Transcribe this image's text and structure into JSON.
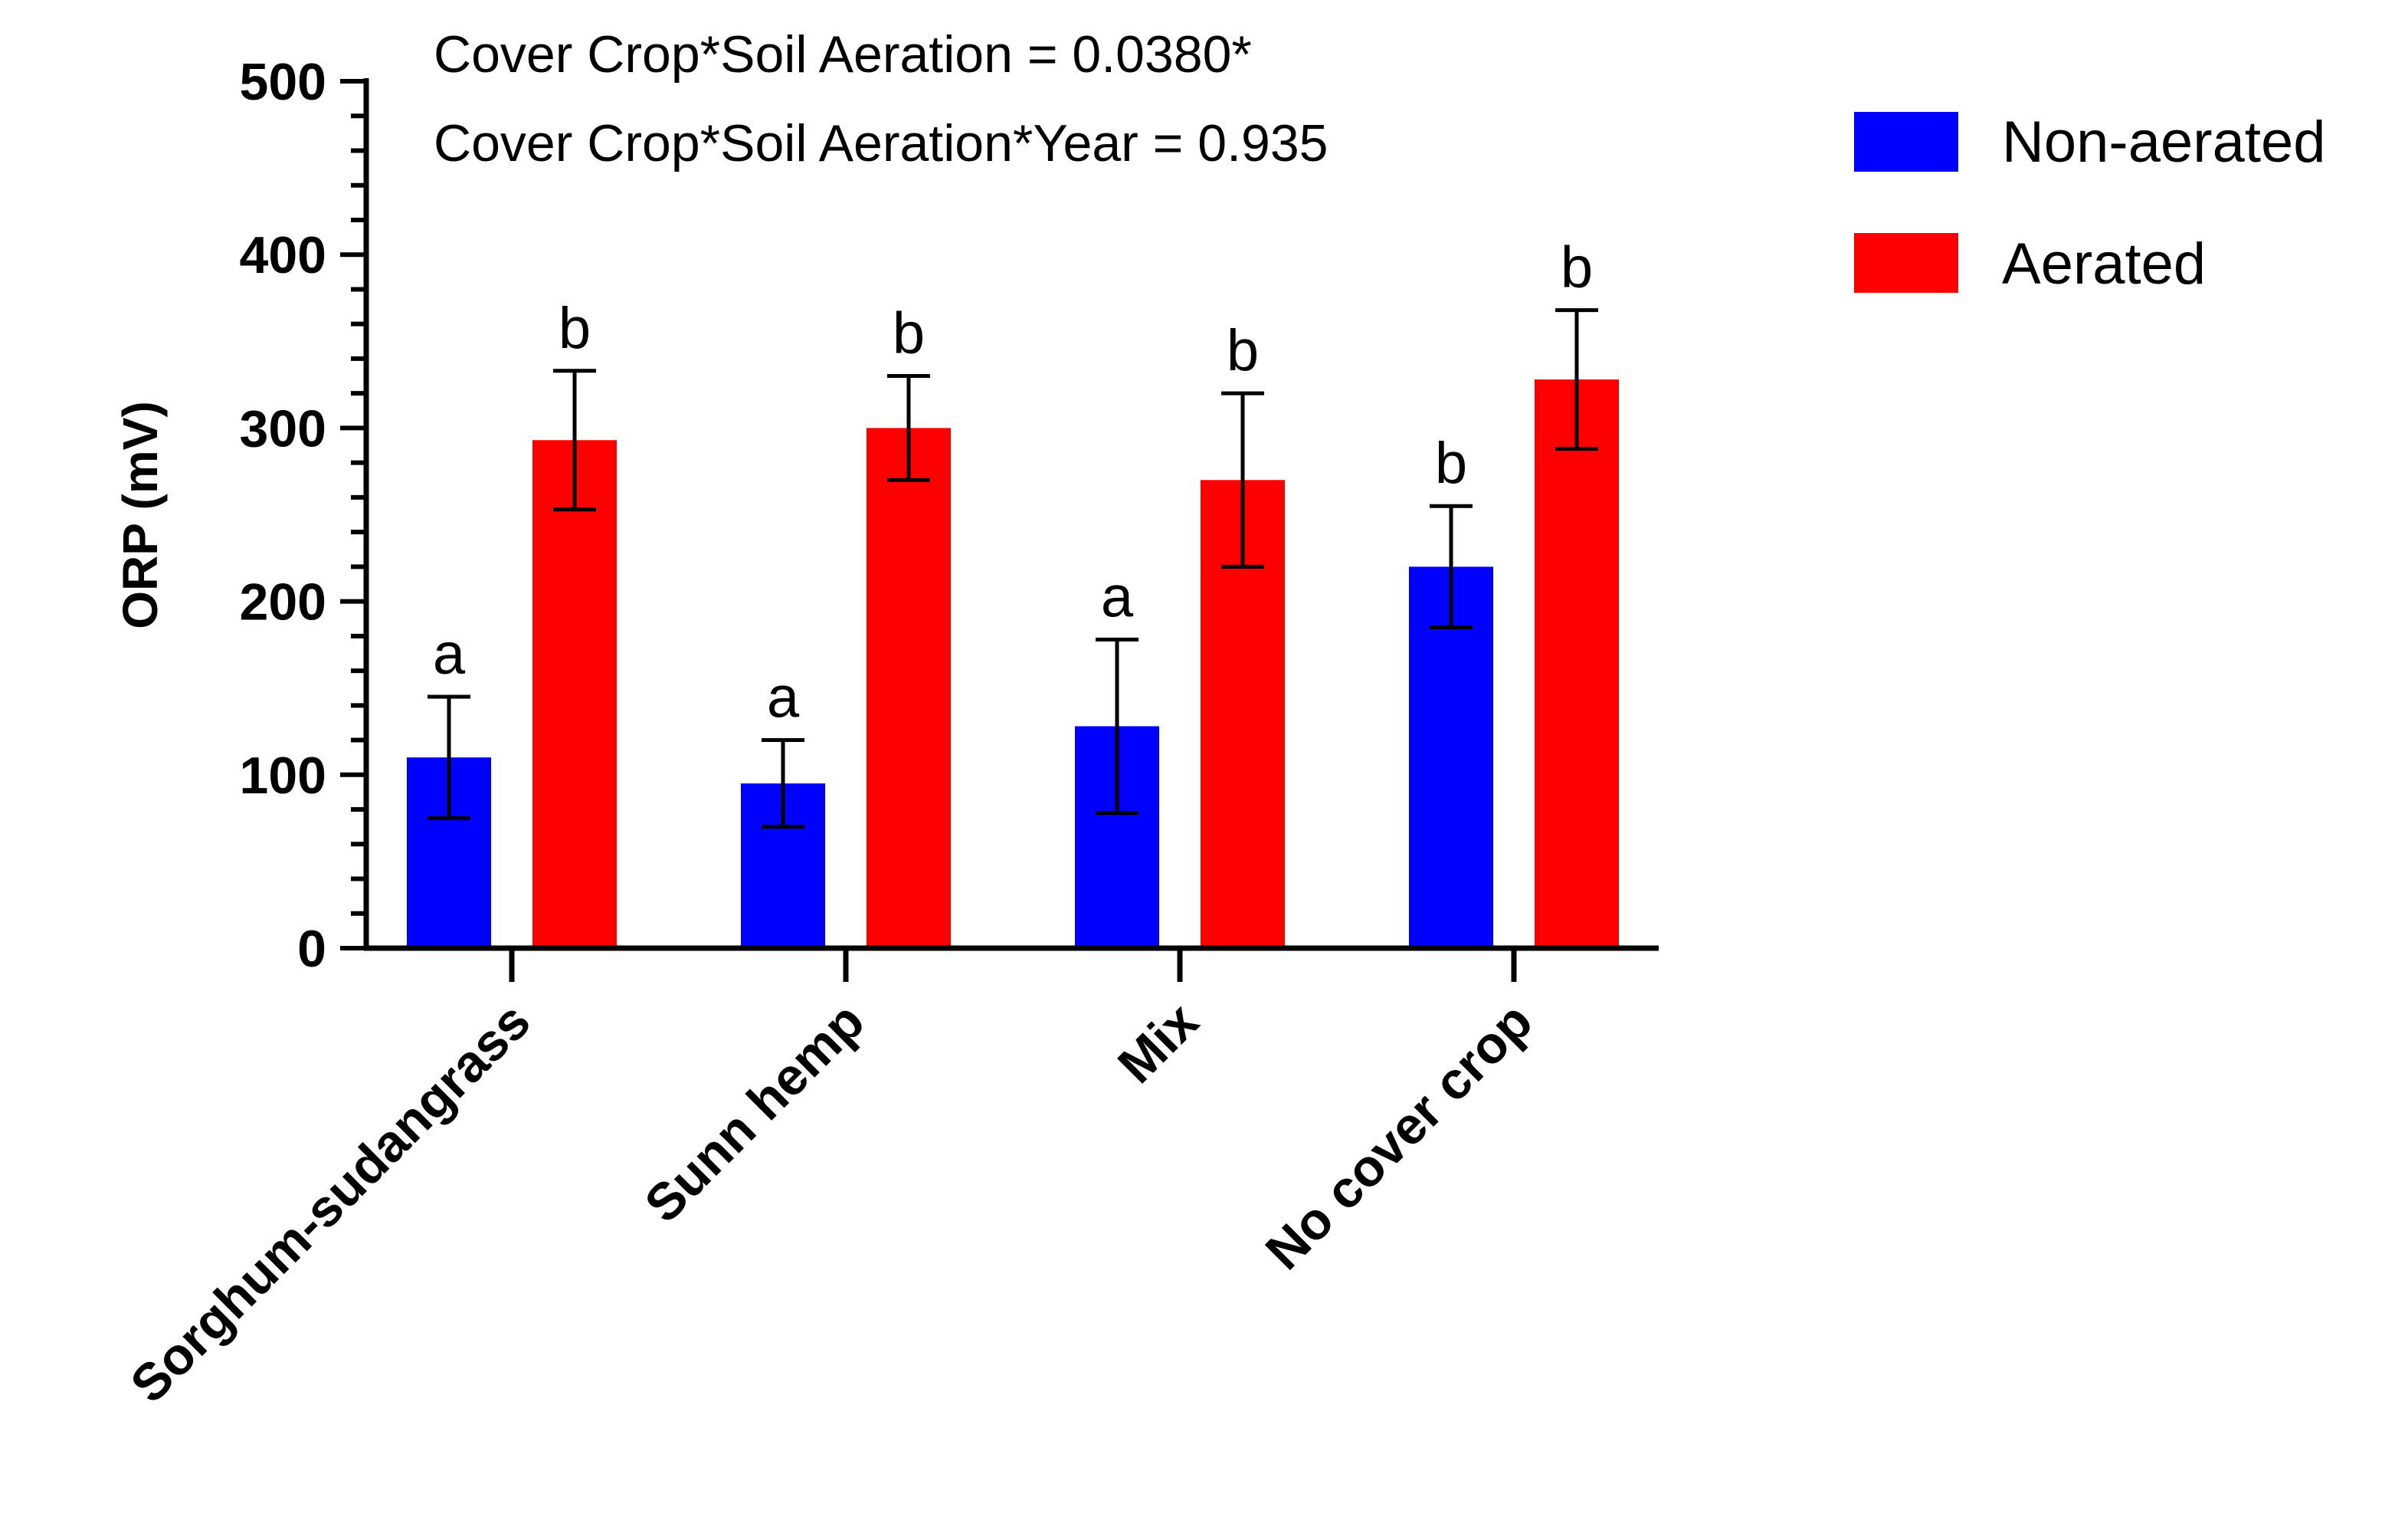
{
  "chart_data": {
    "type": "bar",
    "ylabel": "ORP (mV)",
    "xlabel": "",
    "ylim": [
      0,
      500
    ],
    "yticks": [
      0,
      100,
      200,
      300,
      400,
      500
    ],
    "minor_tick_step": 20,
    "categories": [
      "Sorghum-sudangrass",
      "Sunn hemp",
      "Mix",
      "No cover crop"
    ],
    "series": [
      {
        "name": "Non-aerated",
        "color": "#0000ff",
        "values": [
          110,
          95,
          128,
          220
        ],
        "errors": [
          35,
          25,
          50,
          35
        ],
        "letters": [
          "a",
          "a",
          "a",
          "b"
        ]
      },
      {
        "name": "Aerated",
        "color": "#ff0000",
        "values": [
          293,
          300,
          270,
          328
        ],
        "errors": [
          40,
          30,
          50,
          40
        ],
        "letters": [
          "b",
          "b",
          "b",
          "b"
        ]
      }
    ],
    "annotations": [
      "Cover Crop*Soil Aeration = 0.0380*",
      "Cover Crop*Soil Aeration*Year = 0.935"
    ],
    "legend_position": "top-right"
  }
}
